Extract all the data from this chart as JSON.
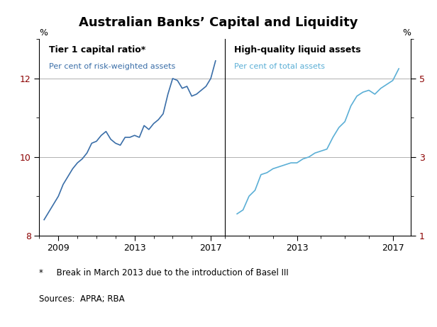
{
  "title": "Australian Banks’ Capital and Liquidity",
  "left_panel_title": "Tier 1 capital ratio*",
  "left_panel_subtitle": "Per cent of risk-weighted assets",
  "right_panel_title": "High-quality liquid assets",
  "right_panel_subtitle": "Per cent of total assets",
  "footnote": "*     Break in March 2013 due to the introduction of Basel III",
  "sources": "Sources:  APRA; RBA",
  "left_ylim": [
    8,
    13
  ],
  "left_yticks": [
    8,
    10,
    12
  ],
  "right_ylim": [
    1,
    6
  ],
  "right_yticks": [
    1,
    3,
    5
  ],
  "left_line_color": "#3a6ea8",
  "right_line_color": "#5bafd6",
  "grid_color": "#b0b0b0",
  "bg_color": "#ffffff",
  "left_data": {
    "x": [
      2008.25,
      2008.5,
      2008.75,
      2009.0,
      2009.25,
      2009.5,
      2009.75,
      2010.0,
      2010.25,
      2010.5,
      2010.75,
      2011.0,
      2011.25,
      2011.5,
      2011.75,
      2012.0,
      2012.25,
      2012.5,
      2012.75,
      2013.0,
      2013.25,
      2013.5,
      2013.75,
      2014.0,
      2014.25,
      2014.5,
      2014.75,
      2015.0,
      2015.25,
      2015.5,
      2015.75,
      2016.0,
      2016.25,
      2016.5,
      2016.75,
      2017.0,
      2017.25
    ],
    "y": [
      8.4,
      8.6,
      8.8,
      9.0,
      9.3,
      9.5,
      9.7,
      9.85,
      9.95,
      10.1,
      10.35,
      10.4,
      10.55,
      10.65,
      10.45,
      10.35,
      10.3,
      10.5,
      10.5,
      10.55,
      10.5,
      10.8,
      10.7,
      10.85,
      10.95,
      11.1,
      11.6,
      12.0,
      11.95,
      11.75,
      11.8,
      11.55,
      11.6,
      11.7,
      11.8,
      12.0,
      12.45
    ]
  },
  "right_data": {
    "x": [
      2010.5,
      2010.75,
      2011.0,
      2011.25,
      2011.5,
      2011.75,
      2012.0,
      2012.25,
      2012.5,
      2012.75,
      2013.0,
      2013.25,
      2013.5,
      2013.75,
      2014.0,
      2014.25,
      2014.5,
      2014.75,
      2015.0,
      2015.25,
      2015.5,
      2015.75,
      2016.0,
      2016.25,
      2016.5,
      2016.75,
      2017.0,
      2017.25
    ],
    "y": [
      1.55,
      1.65,
      2.0,
      2.15,
      2.55,
      2.6,
      2.7,
      2.75,
      2.8,
      2.85,
      2.85,
      2.95,
      3.0,
      3.1,
      3.15,
      3.2,
      3.5,
      3.75,
      3.9,
      4.3,
      4.55,
      4.65,
      4.7,
      4.6,
      4.75,
      4.85,
      4.95,
      5.25
    ]
  },
  "left_xticks": [
    2009,
    2013,
    2017
  ],
  "right_xticks": [
    2013,
    2017
  ],
  "left_xlim": [
    2008.0,
    2017.75
  ],
  "right_xlim": [
    2010.0,
    2017.75
  ]
}
